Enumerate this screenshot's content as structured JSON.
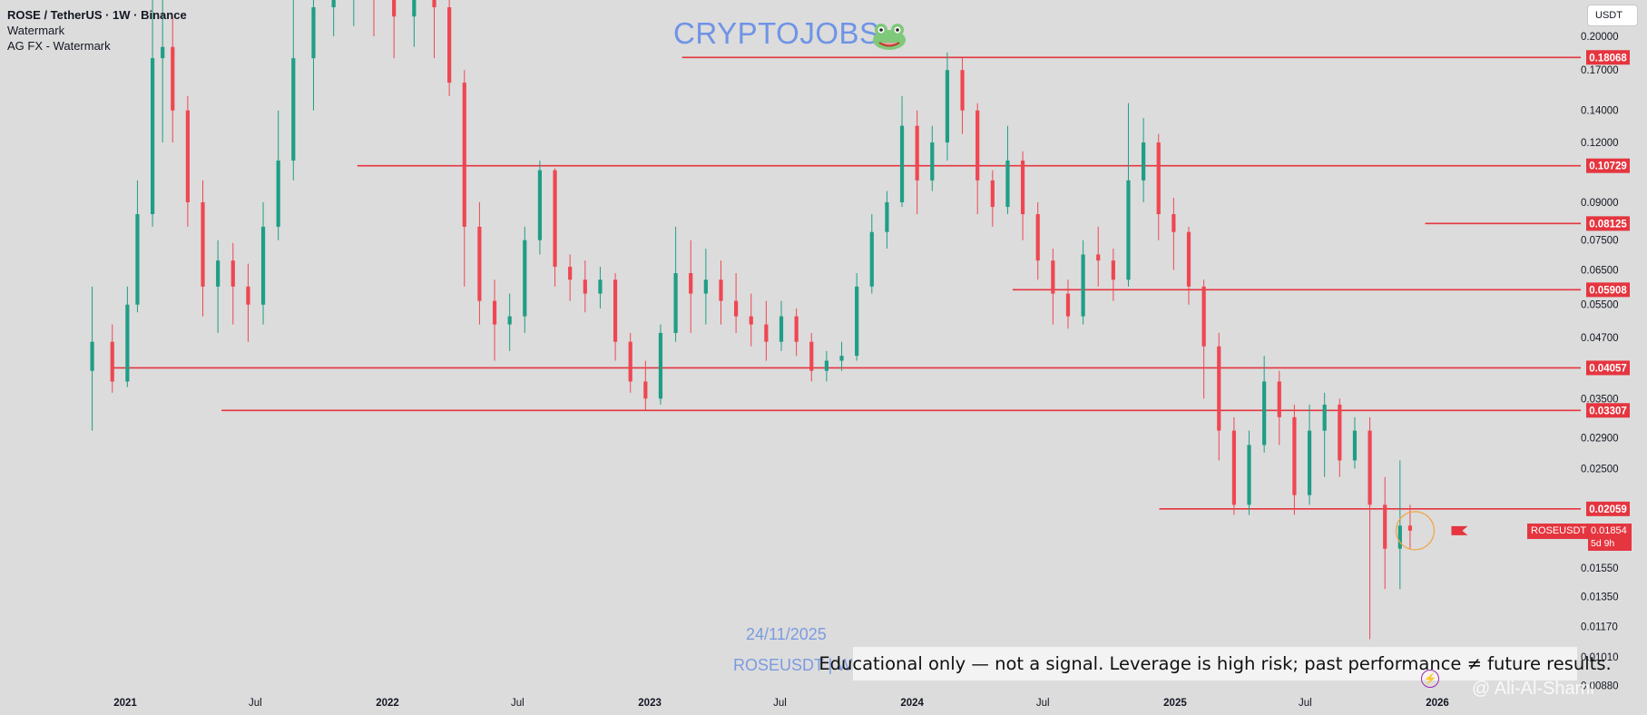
{
  "legend": {
    "title": "ROSE / TetherUS · 1W · Binance",
    "line2": "Watermark",
    "line3": "AG FX - Watermark"
  },
  "unit_button": "USDT",
  "brand": "CRYPTOJOBS",
  "watermark_date": "24/11/2025",
  "watermark_ticker": "ROSEUSDT | W",
  "disclaimer": "Educational only — not a signal. Leverage is high risk; past performance ≠ future results.",
  "signature": "@ Ali-Al-Shami",
  "last_price": {
    "ticker": "ROSEUSDT",
    "price": "0.01854",
    "countdown": "5d 9h"
  },
  "colors": {
    "background": "#dcdcdc",
    "up": "#1f9e86",
    "down": "#ef4752",
    "level": "#e5353f",
    "marker_circle": "#f2a64a",
    "axis_text": "#131722"
  },
  "chart_data": {
    "type": "candlestick",
    "scale": "log",
    "x_axis_labels": [
      {
        "label": "2021",
        "date": "2021-01-01"
      },
      {
        "label": "Jul",
        "date": "2021-07-01"
      },
      {
        "label": "2022",
        "date": "2022-01-01"
      },
      {
        "label": "Jul",
        "date": "2022-07-01"
      },
      {
        "label": "2023",
        "date": "2023-01-01"
      },
      {
        "label": "Jul",
        "date": "2023-07-01"
      },
      {
        "label": "2024",
        "date": "2024-01-01"
      },
      {
        "label": "Jul",
        "date": "2024-07-01"
      },
      {
        "label": "2025",
        "date": "2025-01-01"
      },
      {
        "label": "Jul",
        "date": "2025-07-01"
      },
      {
        "label": "2026",
        "date": "2026-01-01"
      }
    ],
    "y_axis_ticks": [
      "0.20000",
      "0.17000",
      "0.14000",
      "0.12000",
      "0.09000",
      "0.07500",
      "0.06500",
      "0.05500",
      "0.04700",
      "0.03500",
      "0.02900",
      "0.02500",
      "0.01550",
      "0.01350",
      "0.01170",
      "0.01010",
      "0.00880"
    ],
    "levels": [
      {
        "label": "0.18068",
        "value": 0.18068,
        "from": "2023-02-15"
      },
      {
        "label": "0.10729",
        "value": 0.10729,
        "from": "2021-11-20"
      },
      {
        "label": "0.08125",
        "value": 0.08125,
        "from": "2025-12-15"
      },
      {
        "label": "0.05908",
        "value": 0.05908,
        "from": "2024-05-20"
      },
      {
        "label": "0.04057",
        "value": 0.04057,
        "from": "2020-12-15"
      },
      {
        "label": "0.03307",
        "value": 0.03307,
        "from": "2021-05-15"
      },
      {
        "label": "0.02059",
        "value": 0.02059,
        "from": "2024-12-10"
      }
    ],
    "candles": [
      [
        "2020-11-16",
        0.04,
        0.046,
        0.06,
        0.03
      ],
      [
        "2020-12-14",
        0.046,
        0.038,
        0.05,
        0.036
      ],
      [
        "2021-01-04",
        0.038,
        0.055,
        0.06,
        0.037
      ],
      [
        "2021-01-18",
        0.055,
        0.085,
        0.1,
        0.053
      ],
      [
        "2021-02-08",
        0.085,
        0.18,
        0.26,
        0.08
      ],
      [
        "2021-02-22",
        0.18,
        0.19,
        0.24,
        0.12
      ],
      [
        "2021-03-08",
        0.19,
        0.14,
        0.22,
        0.12
      ],
      [
        "2021-03-29",
        0.14,
        0.09,
        0.15,
        0.08
      ],
      [
        "2021-04-19",
        0.09,
        0.06,
        0.1,
        0.052
      ],
      [
        "2021-05-10",
        0.06,
        0.068,
        0.075,
        0.048
      ],
      [
        "2021-05-31",
        0.068,
        0.06,
        0.074,
        0.05
      ],
      [
        "2021-06-21",
        0.06,
        0.055,
        0.067,
        0.046
      ],
      [
        "2021-07-12",
        0.055,
        0.08,
        0.09,
        0.05
      ],
      [
        "2021-08-02",
        0.08,
        0.11,
        0.14,
        0.075
      ],
      [
        "2021-08-23",
        0.11,
        0.18,
        0.24,
        0.1
      ],
      [
        "2021-09-20",
        0.18,
        0.23,
        0.3,
        0.14
      ],
      [
        "2021-10-18",
        0.23,
        0.27,
        0.32,
        0.2
      ],
      [
        "2021-11-15",
        0.27,
        0.28,
        0.35,
        0.21
      ],
      [
        "2021-12-13",
        0.28,
        0.24,
        0.33,
        0.2
      ],
      [
        "2022-01-10",
        0.24,
        0.22,
        0.3,
        0.18
      ],
      [
        "2022-02-07",
        0.22,
        0.25,
        0.29,
        0.19
      ],
      [
        "2022-03-07",
        0.25,
        0.23,
        0.27,
        0.18
      ],
      [
        "2022-03-28",
        0.23,
        0.16,
        0.24,
        0.15
      ],
      [
        "2022-04-18",
        0.16,
        0.08,
        0.17,
        0.06
      ],
      [
        "2022-05-09",
        0.08,
        0.056,
        0.09,
        0.05
      ],
      [
        "2022-05-30",
        0.056,
        0.05,
        0.062,
        0.042
      ],
      [
        "2022-06-20",
        0.05,
        0.052,
        0.058,
        0.044
      ],
      [
        "2022-07-11",
        0.052,
        0.075,
        0.08,
        0.048
      ],
      [
        "2022-08-01",
        0.075,
        0.105,
        0.11,
        0.07
      ],
      [
        "2022-08-22",
        0.105,
        0.066,
        0.106,
        0.06
      ],
      [
        "2022-09-12",
        0.066,
        0.062,
        0.07,
        0.056
      ],
      [
        "2022-10-03",
        0.062,
        0.058,
        0.068,
        0.053
      ],
      [
        "2022-10-24",
        0.058,
        0.062,
        0.066,
        0.054
      ],
      [
        "2022-11-14",
        0.062,
        0.046,
        0.064,
        0.042
      ],
      [
        "2022-12-05",
        0.046,
        0.038,
        0.048,
        0.036
      ],
      [
        "2022-12-26",
        0.038,
        0.035,
        0.042,
        0.033
      ],
      [
        "2023-01-16",
        0.035,
        0.048,
        0.05,
        0.034
      ],
      [
        "2023-02-06",
        0.048,
        0.064,
        0.08,
        0.046
      ],
      [
        "2023-02-27",
        0.064,
        0.058,
        0.075,
        0.048
      ],
      [
        "2023-03-20",
        0.058,
        0.062,
        0.072,
        0.05
      ],
      [
        "2023-04-10",
        0.062,
        0.056,
        0.068,
        0.05
      ],
      [
        "2023-05-01",
        0.056,
        0.052,
        0.064,
        0.048
      ],
      [
        "2023-05-22",
        0.052,
        0.05,
        0.058,
        0.045
      ],
      [
        "2023-06-12",
        0.05,
        0.046,
        0.056,
        0.042
      ],
      [
        "2023-07-03",
        0.046,
        0.052,
        0.056,
        0.044
      ],
      [
        "2023-07-24",
        0.052,
        0.046,
        0.054,
        0.043
      ],
      [
        "2023-08-14",
        0.046,
        0.04,
        0.048,
        0.038
      ],
      [
        "2023-09-04",
        0.04,
        0.042,
        0.044,
        0.038
      ],
      [
        "2023-09-25",
        0.042,
        0.043,
        0.046,
        0.04
      ],
      [
        "2023-10-16",
        0.043,
        0.06,
        0.064,
        0.042
      ],
      [
        "2023-11-06",
        0.06,
        0.078,
        0.085,
        0.058
      ],
      [
        "2023-11-27",
        0.078,
        0.09,
        0.095,
        0.072
      ],
      [
        "2023-12-18",
        0.09,
        0.13,
        0.15,
        0.088
      ],
      [
        "2024-01-08",
        0.13,
        0.1,
        0.14,
        0.085
      ],
      [
        "2024-01-29",
        0.1,
        0.12,
        0.13,
        0.095
      ],
      [
        "2024-02-19",
        0.12,
        0.17,
        0.185,
        0.11
      ],
      [
        "2024-03-11",
        0.17,
        0.14,
        0.18,
        0.125
      ],
      [
        "2024-04-01",
        0.14,
        0.1,
        0.145,
        0.085
      ],
      [
        "2024-04-22",
        0.1,
        0.088,
        0.105,
        0.08
      ],
      [
        "2024-05-13",
        0.088,
        0.11,
        0.13,
        0.085
      ],
      [
        "2024-06-03",
        0.11,
        0.085,
        0.115,
        0.075
      ],
      [
        "2024-06-24",
        0.085,
        0.068,
        0.09,
        0.062
      ],
      [
        "2024-07-15",
        0.068,
        0.058,
        0.072,
        0.05
      ],
      [
        "2024-08-05",
        0.058,
        0.052,
        0.062,
        0.049
      ],
      [
        "2024-08-26",
        0.052,
        0.07,
        0.075,
        0.05
      ],
      [
        "2024-09-16",
        0.07,
        0.068,
        0.08,
        0.06
      ],
      [
        "2024-10-07",
        0.068,
        0.062,
        0.072,
        0.056
      ],
      [
        "2024-10-28",
        0.062,
        0.1,
        0.145,
        0.06
      ],
      [
        "2024-11-18",
        0.1,
        0.12,
        0.135,
        0.09
      ],
      [
        "2024-12-09",
        0.12,
        0.085,
        0.125,
        0.075
      ],
      [
        "2024-12-30",
        0.085,
        0.078,
        0.092,
        0.065
      ],
      [
        "2025-01-20",
        0.078,
        0.06,
        0.08,
        0.055
      ],
      [
        "2025-02-10",
        0.06,
        0.045,
        0.062,
        0.035
      ],
      [
        "2025-03-03",
        0.045,
        0.03,
        0.048,
        0.026
      ],
      [
        "2025-03-24",
        0.03,
        0.021,
        0.032,
        0.02
      ],
      [
        "2025-04-14",
        0.021,
        0.028,
        0.03,
        0.02
      ],
      [
        "2025-05-05",
        0.028,
        0.038,
        0.043,
        0.027
      ],
      [
        "2025-05-26",
        0.038,
        0.032,
        0.04,
        0.028
      ],
      [
        "2025-06-16",
        0.032,
        0.022,
        0.034,
        0.02
      ],
      [
        "2025-07-07",
        0.022,
        0.03,
        0.034,
        0.021
      ],
      [
        "2025-07-28",
        0.03,
        0.034,
        0.036,
        0.024
      ],
      [
        "2025-08-18",
        0.034,
        0.026,
        0.035,
        0.024
      ],
      [
        "2025-09-08",
        0.026,
        0.03,
        0.032,
        0.025
      ],
      [
        "2025-09-29",
        0.03,
        0.021,
        0.032,
        0.011
      ],
      [
        "2025-10-20",
        0.021,
        0.017,
        0.024,
        0.014
      ],
      [
        "2025-11-10",
        0.017,
        0.019,
        0.026,
        0.014
      ],
      [
        "2025-11-24",
        0.019,
        0.01854,
        0.021,
        0.017
      ]
    ],
    "current_price": 0.01854,
    "marker_date": "2025-12-01",
    "ylabel": "USDT"
  }
}
